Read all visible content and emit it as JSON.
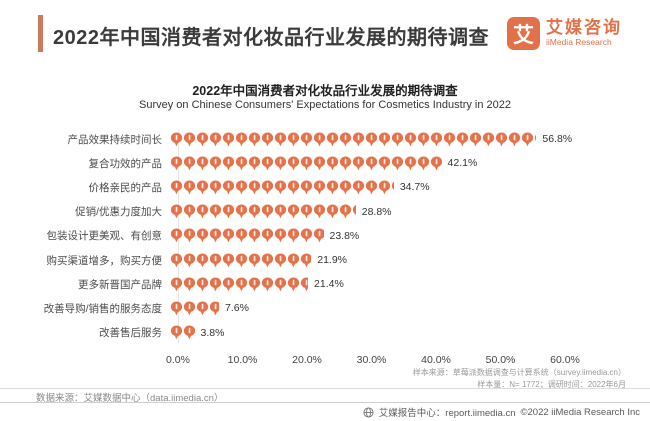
{
  "header": {
    "title": "2022年中国消费者对化妆品行业发展的期待调查",
    "logo": {
      "mark": "艾",
      "name_cn": "艾媒咨询",
      "name_en": "iiMedia Research"
    }
  },
  "chart_data": {
    "type": "bar",
    "orientation": "horizontal",
    "pictogram": true,
    "title": "2022年中国消费者对化妆品行业发展的期待调查",
    "subtitle": "Survey on Chinese Consumers' Expectations for Cosmetics Industry in 2022",
    "categories": [
      "产品效果持续时间长",
      "复合功效的产品",
      "价格亲民的产品",
      "促销/优惠力度加大",
      "包装设计更美观、有创意",
      "购买渠道增多，购买方便",
      "更多新晋国产品牌",
      "改善导购/销售的服务态度",
      "改善售后服务"
    ],
    "values": [
      56.8,
      42.1,
      34.7,
      28.8,
      23.8,
      21.9,
      21.4,
      7.6,
      3.8
    ],
    "value_labels": [
      "56.8%",
      "42.1%",
      "34.7%",
      "28.8%",
      "23.8%",
      "21.9%",
      "21.4%",
      "7.6%",
      "3.8%"
    ],
    "x_ticks": [
      "0.0%",
      "10.0%",
      "20.0%",
      "30.0%",
      "40.0%",
      "50.0%",
      "60.0%"
    ],
    "xlim": [
      0,
      60
    ],
    "grid": false,
    "legend": "none",
    "bar_color": "#E4724B",
    "icon": "cosmetic-pictogram-icon"
  },
  "notes": {
    "sample_source": "样本来源：草莓派数据调查与计算系统（survey.iimedia.cn）",
    "sample_size": "样本量：N= 1772；调研时间：2022年6月",
    "data_source": "数据来源：艾媒数据中心（data.iimedia.cn）"
  },
  "footer": {
    "report_center": "艾媒报告中心：report.iimedia.cn",
    "copyright": "©2022  iiMedia Research Inc"
  },
  "colors": {
    "accent": "#E2714A",
    "header_bar": "#CC7A5F"
  }
}
